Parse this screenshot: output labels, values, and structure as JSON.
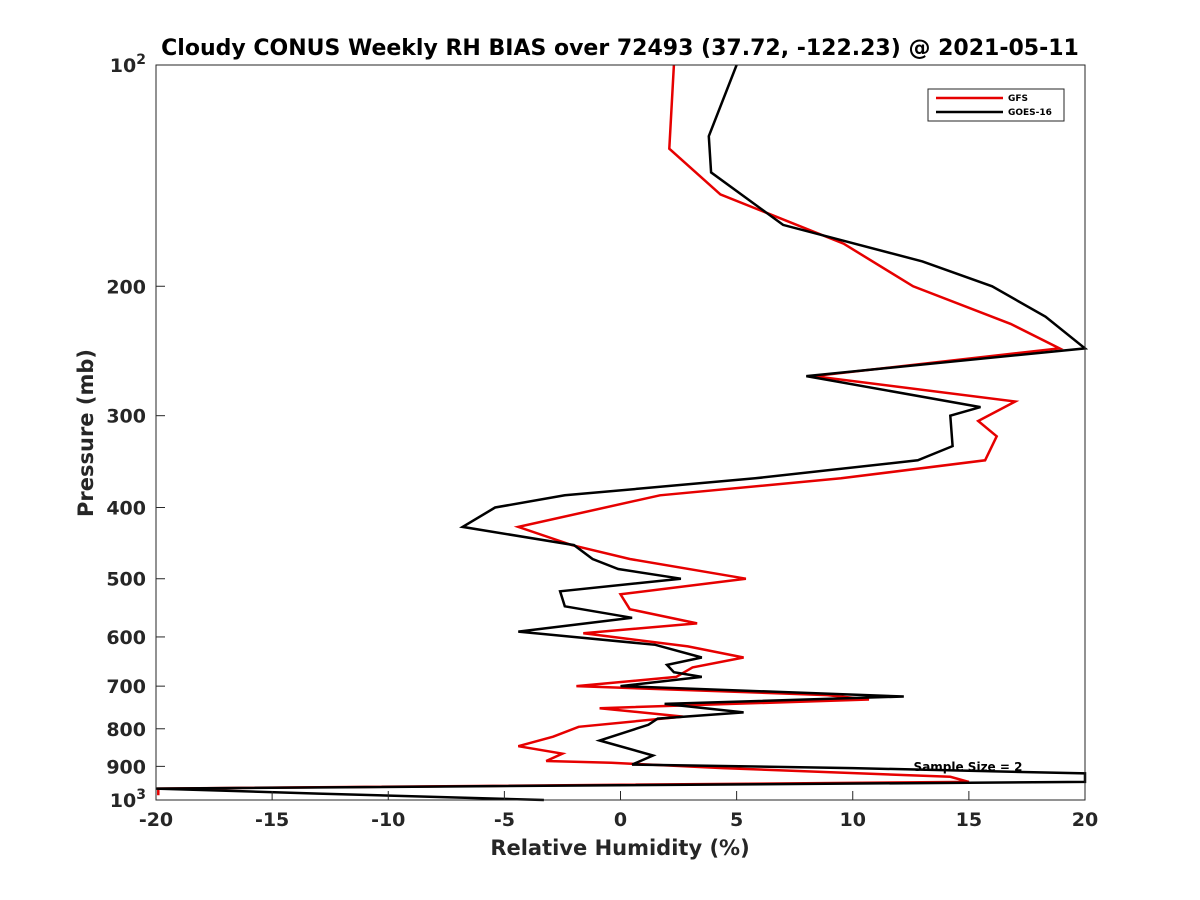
{
  "chart_data": {
    "type": "line",
    "title": "Cloudy CONUS Weekly RH BIAS over 72493 (37.72, -122.23) @ 2021-05-11",
    "xlabel": "Relative Humidity (%)",
    "ylabel": "Pressure (mb)",
    "xlim": [
      -20,
      20
    ],
    "ylim": [
      100,
      1000
    ],
    "yscale": "log",
    "y_reversed": true,
    "grid": false,
    "legend_position": "top-right",
    "xticks": [
      {
        "value": -20,
        "label": "-20"
      },
      {
        "value": -15,
        "label": "-15"
      },
      {
        "value": -10,
        "label": "-10"
      },
      {
        "value": -5,
        "label": "-5"
      },
      {
        "value": 0,
        "label": "0"
      },
      {
        "value": 5,
        "label": "5"
      },
      {
        "value": 10,
        "label": "10"
      },
      {
        "value": 15,
        "label": "15"
      },
      {
        "value": 20,
        "label": "20"
      }
    ],
    "yticks": [
      {
        "value": 100,
        "label": "10",
        "sup": "2"
      },
      {
        "value": 200,
        "label": "200",
        "sup": ""
      },
      {
        "value": 300,
        "label": "300",
        "sup": ""
      },
      {
        "value": 400,
        "label": "400",
        "sup": ""
      },
      {
        "value": 500,
        "label": "500",
        "sup": ""
      },
      {
        "value": 600,
        "label": "600",
        "sup": ""
      },
      {
        "value": 700,
        "label": "700",
        "sup": ""
      },
      {
        "value": 800,
        "label": "800",
        "sup": ""
      },
      {
        "value": 900,
        "label": "900",
        "sup": ""
      },
      {
        "value": 1000,
        "label": "10",
        "sup": "3"
      }
    ],
    "annotation": "Sample Size = 2",
    "series": [
      {
        "name": "GFS",
        "color": "#e60000",
        "points": [
          [
            2.3,
            100
          ],
          [
            2.1,
            130
          ],
          [
            4.3,
            150
          ],
          [
            9.6,
            175
          ],
          [
            12.6,
            200
          ],
          [
            16.8,
            225
          ],
          [
            18.9,
            243
          ],
          [
            8.3,
            265
          ],
          [
            17.0,
            287
          ],
          [
            15.4,
            305
          ],
          [
            16.2,
            320
          ],
          [
            15.7,
            345
          ],
          [
            9.5,
            365
          ],
          [
            1.7,
            385
          ],
          [
            -4.4,
            425
          ],
          [
            -2.1,
            450
          ],
          [
            0.4,
            470
          ],
          [
            5.4,
            500
          ],
          [
            0.0,
            525
          ],
          [
            0.4,
            550
          ],
          [
            3.3,
            575
          ],
          [
            -1.6,
            593
          ],
          [
            2.9,
            618
          ],
          [
            5.3,
            640
          ],
          [
            3.1,
            660
          ],
          [
            2.4,
            680
          ],
          [
            -1.9,
            700
          ],
          [
            8.9,
            720
          ],
          [
            10.7,
            730
          ],
          [
            -0.9,
            750
          ],
          [
            2.7,
            770
          ],
          [
            -1.8,
            795
          ],
          [
            -2.9,
            820
          ],
          [
            -4.4,
            845
          ],
          [
            -2.5,
            865
          ],
          [
            -3.2,
            885
          ],
          [
            -0.4,
            890
          ],
          [
            4.4,
            905
          ],
          [
            14.2,
            930
          ],
          [
            15.0,
            945
          ],
          [
            -19.9,
            965
          ],
          [
            -19.9,
            985
          ]
        ]
      },
      {
        "name": "GOES-16",
        "color": "#000000",
        "points": [
          [
            5.0,
            100
          ],
          [
            3.8,
            125
          ],
          [
            3.9,
            140
          ],
          [
            7.0,
            165
          ],
          [
            13.0,
            185
          ],
          [
            16.0,
            200
          ],
          [
            18.3,
            220
          ],
          [
            20.0,
            243
          ],
          [
            8.0,
            265
          ],
          [
            15.5,
            292
          ],
          [
            14.2,
            300
          ],
          [
            14.3,
            330
          ],
          [
            12.8,
            345
          ],
          [
            5.8,
            365
          ],
          [
            -2.4,
            385
          ],
          [
            -5.4,
            400
          ],
          [
            -6.8,
            425
          ],
          [
            -2.0,
            450
          ],
          [
            -1.2,
            470
          ],
          [
            -0.1,
            485
          ],
          [
            2.6,
            500
          ],
          [
            -2.6,
            520
          ],
          [
            -2.4,
            545
          ],
          [
            0.5,
            565
          ],
          [
            -4.4,
            590
          ],
          [
            1.5,
            615
          ],
          [
            3.5,
            640
          ],
          [
            2.0,
            655
          ],
          [
            2.3,
            670
          ],
          [
            3.5,
            680
          ],
          [
            0.0,
            700
          ],
          [
            12.2,
            723
          ],
          [
            1.9,
            740
          ],
          [
            5.3,
            760
          ],
          [
            1.6,
            775
          ],
          [
            1.2,
            790
          ],
          [
            -0.9,
            830
          ],
          [
            1.4,
            870
          ],
          [
            0.5,
            895
          ],
          [
            10.0,
            905
          ],
          [
            20.0,
            920
          ],
          [
            20.0,
            945
          ],
          [
            -20.0,
            965
          ],
          [
            -13.0,
            980
          ],
          [
            -3.3,
            1000
          ]
        ]
      }
    ]
  }
}
